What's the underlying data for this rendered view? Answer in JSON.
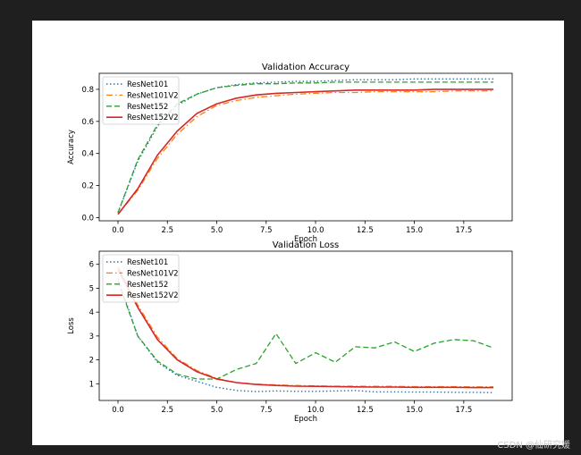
{
  "watermark": "CSDN @仙研究媛",
  "colors": {
    "ResNet101": "#1f77b4",
    "ResNet101V2": "#ff7f0e",
    "ResNet152": "#2ca02c",
    "ResNet152V2": "#d62728"
  },
  "chart_data": [
    {
      "type": "line",
      "title": "Validation Accuracy",
      "xlabel": "Epoch",
      "ylabel": "Accuracy",
      "xlim": [
        -0.95,
        19.95
      ],
      "ylim": [
        -0.02,
        0.9
      ],
      "xticks": [
        "0.0",
        "2.5",
        "5.0",
        "7.5",
        "10.0",
        "12.5",
        "15.0",
        "17.5"
      ],
      "xtick_values": [
        0,
        2.5,
        5,
        7.5,
        10,
        12.5,
        15,
        17.5
      ],
      "yticks": [
        "0.0",
        "0.2",
        "0.4",
        "0.6",
        "0.8"
      ],
      "ytick_values": [
        0,
        0.2,
        0.4,
        0.6,
        0.8
      ],
      "legend_position": "top-left",
      "x": [
        0,
        1,
        2,
        3,
        4,
        5,
        6,
        7,
        8,
        9,
        10,
        11,
        12,
        13,
        14,
        15,
        16,
        17,
        18,
        19
      ],
      "series": [
        {
          "name": "ResNet101",
          "style": "dotted",
          "values": [
            0.03,
            0.35,
            0.57,
            0.7,
            0.77,
            0.81,
            0.83,
            0.84,
            0.845,
            0.85,
            0.85,
            0.855,
            0.86,
            0.86,
            0.86,
            0.865,
            0.865,
            0.865,
            0.865,
            0.865
          ]
        },
        {
          "name": "ResNet101V2",
          "style": "dashdot",
          "values": [
            0.02,
            0.17,
            0.37,
            0.52,
            0.63,
            0.7,
            0.73,
            0.75,
            0.76,
            0.77,
            0.775,
            0.78,
            0.78,
            0.785,
            0.785,
            0.785,
            0.785,
            0.79,
            0.79,
            0.79
          ]
        },
        {
          "name": "ResNet152",
          "style": "dashed",
          "values": [
            0.03,
            0.36,
            0.58,
            0.71,
            0.77,
            0.81,
            0.825,
            0.835,
            0.835,
            0.84,
            0.84,
            0.845,
            0.845,
            0.845,
            0.845,
            0.845,
            0.845,
            0.845,
            0.845,
            0.845
          ]
        },
        {
          "name": "ResNet152V2",
          "style": "solid",
          "values": [
            0.02,
            0.18,
            0.39,
            0.54,
            0.65,
            0.71,
            0.745,
            0.765,
            0.775,
            0.78,
            0.785,
            0.79,
            0.795,
            0.795,
            0.795,
            0.795,
            0.8,
            0.8,
            0.8,
            0.8
          ]
        }
      ]
    },
    {
      "type": "line",
      "title": "Validation Loss",
      "xlabel": "Epoch",
      "ylabel": "Loss",
      "xlim": [
        -0.95,
        19.95
      ],
      "ylim": [
        0.3,
        6.55
      ],
      "xticks": [
        "0.0",
        "2.5",
        "5.0",
        "7.5",
        "10.0",
        "12.5",
        "15.0",
        "17.5"
      ],
      "xtick_values": [
        0,
        2.5,
        5,
        7.5,
        10,
        12.5,
        15,
        17.5
      ],
      "yticks": [
        "1",
        "2",
        "3",
        "4",
        "5",
        "6"
      ],
      "ytick_values": [
        1,
        2,
        3,
        4,
        5,
        6
      ],
      "legend_position": "top-left",
      "x": [
        0,
        1,
        2,
        3,
        4,
        5,
        6,
        7,
        8,
        9,
        10,
        11,
        12,
        13,
        14,
        15,
        16,
        17,
        18,
        19
      ],
      "series": [
        {
          "name": "ResNet101",
          "style": "dotted",
          "values": [
            5.4,
            3.0,
            1.9,
            1.35,
            1.1,
            0.85,
            0.72,
            0.67,
            0.7,
            0.68,
            0.68,
            0.7,
            0.72,
            0.66,
            0.66,
            0.65,
            0.65,
            0.64,
            0.64,
            0.63
          ]
        },
        {
          "name": "ResNet101V2",
          "style": "dashdot",
          "values": [
            5.9,
            4.3,
            2.95,
            2.05,
            1.55,
            1.22,
            1.05,
            0.98,
            0.95,
            0.93,
            0.91,
            0.9,
            0.9,
            0.89,
            0.89,
            0.88,
            0.88,
            0.88,
            0.87,
            0.87
          ]
        },
        {
          "name": "ResNet152",
          "style": "dashed",
          "values": [
            5.3,
            3.0,
            1.95,
            1.4,
            1.2,
            1.2,
            1.6,
            1.85,
            3.1,
            1.85,
            2.3,
            1.9,
            2.55,
            2.5,
            2.75,
            2.35,
            2.7,
            2.85,
            2.8,
            2.5
          ]
        },
        {
          "name": "ResNet152V2",
          "style": "solid",
          "values": [
            5.8,
            4.2,
            2.85,
            2.0,
            1.5,
            1.2,
            1.05,
            0.97,
            0.93,
            0.9,
            0.89,
            0.88,
            0.87,
            0.86,
            0.86,
            0.85,
            0.85,
            0.85,
            0.84,
            0.84
          ]
        }
      ]
    }
  ]
}
